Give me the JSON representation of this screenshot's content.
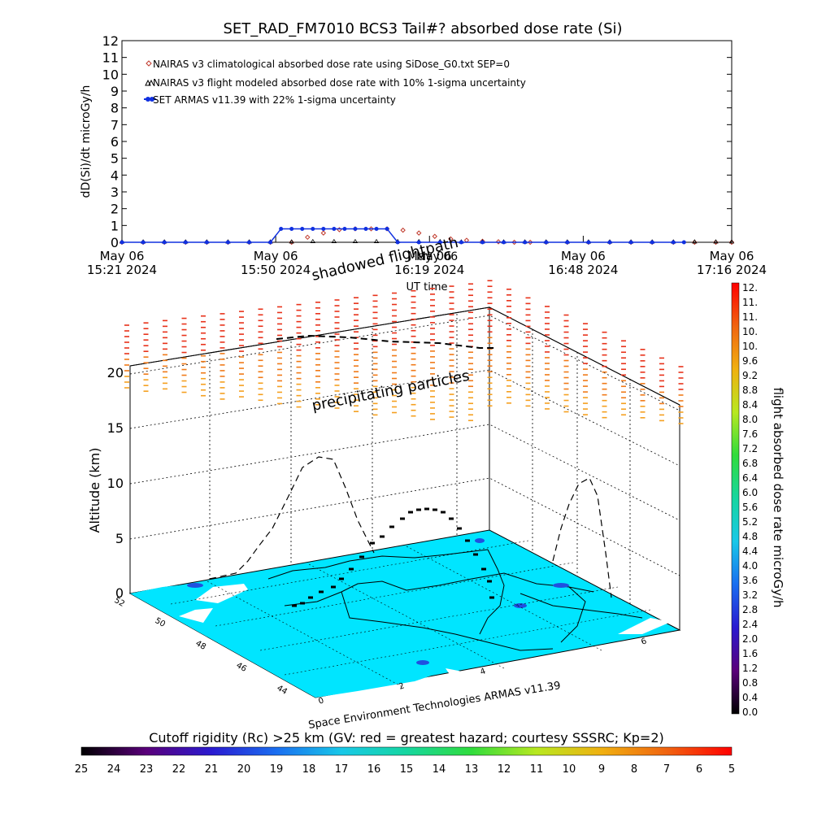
{
  "title": "SET_RAD_FM7010  BCS3 Tail#? absorbed dose rate (Si)",
  "top_chart": {
    "ylabel": "dD(Si)/dt microGy/h",
    "xlabel": "UT time",
    "y_ticks": [
      "0",
      "1",
      "2",
      "3",
      "4",
      "5",
      "6",
      "7",
      "8",
      "9",
      "10",
      "11",
      "12"
    ],
    "x_ticks": [
      {
        "day": "May 06",
        "time": "15:21 2024"
      },
      {
        "day": "May 06",
        "time": "15:50 2024"
      },
      {
        "day": "May 06",
        "time": "16:19 2024"
      },
      {
        "day": "May 06",
        "time": "16:48 2024"
      },
      {
        "day": "May 06",
        "time": "17:16 2024"
      }
    ],
    "legend": [
      "NAIRAS v3 climatological absorbed dose rate using SiDose_G0.txt SEP=0",
      "NAIRAS v3 flight modeled absorbed dose rate with 10% 1-sigma uncertainty",
      "SET ARMAS v11.39 with 22% 1-sigma uncertainty"
    ]
  },
  "chart_data": [
    {
      "type": "line",
      "title": "SET_RAD_FM7010  BCS3 Tail#? absorbed dose rate (Si)",
      "xlabel": "UT time",
      "ylabel": "dD(Si)/dt microGy/h",
      "ylim": [
        0,
        12
      ],
      "xlim": [
        "15:21",
        "17:16"
      ],
      "grid": false,
      "legend_position": "top-left",
      "series": [
        {
          "name": "NAIRAS v3 climatological absorbed dose rate using SiDose_G0.txt SEP=0",
          "color": "#c0392b",
          "marker": "diamond",
          "x_minutes": [
            0,
            4,
            8,
            12,
            16,
            20,
            24,
            28,
            32,
            35,
            38,
            41,
            44,
            47,
            50,
            53,
            56,
            59,
            62,
            65,
            68,
            71,
            74,
            77,
            80,
            84,
            88,
            92,
            96,
            100,
            104,
            108,
            112,
            115
          ],
          "values": [
            0,
            0,
            0,
            0,
            0,
            0,
            0,
            0,
            0,
            0.3,
            0.55,
            0.75,
            0.8,
            0.8,
            0.8,
            0.72,
            0.55,
            0.35,
            0.2,
            0.12,
            0.06,
            0.03,
            0,
            0,
            0,
            0,
            0,
            0,
            0,
            0,
            0,
            0,
            0,
            0
          ]
        },
        {
          "name": "NAIRAS v3 flight modeled absorbed dose rate with 10% 1-sigma uncertainty",
          "color": "#000000",
          "marker": "triangle",
          "x_minutes": [
            0,
            4,
            8,
            12,
            16,
            20,
            24,
            28,
            32,
            36,
            40,
            44,
            48,
            52,
            56,
            60,
            64,
            68,
            72,
            76,
            80,
            84,
            88,
            92,
            96,
            100,
            104,
            108,
            112,
            115
          ],
          "values": [
            0,
            0,
            0,
            0,
            0,
            0,
            0,
            0,
            0,
            0.02,
            0.02,
            0.02,
            0.02,
            0.02,
            0.02,
            0.02,
            0,
            0,
            0,
            0,
            0,
            0,
            0,
            0,
            0,
            0,
            0,
            0,
            0,
            0
          ]
        },
        {
          "name": "SET ARMAS v11.39 with 22% 1-sigma uncertainty",
          "color": "#1030e0",
          "marker": "circle",
          "x_minutes": [
            0,
            4,
            8,
            12,
            16,
            20,
            24,
            28,
            30,
            32,
            34,
            36,
            38,
            40,
            42,
            44,
            46,
            48,
            50,
            52,
            56,
            60,
            64,
            68,
            72,
            76,
            80,
            84,
            88,
            92,
            96,
            100,
            104,
            106
          ],
          "values": [
            0,
            0,
            0,
            0,
            0,
            0,
            0,
            0,
            0.8,
            0.8,
            0.8,
            0.8,
            0.8,
            0.8,
            0.8,
            0.8,
            0.8,
            0.8,
            0.8,
            0,
            0,
            0,
            0,
            0,
            0,
            0,
            0,
            0,
            0,
            0,
            0,
            0,
            0,
            0
          ]
        }
      ]
    }
  ],
  "scene": {
    "zlabel": "Altitude (km)",
    "z_ticks": [
      "0",
      "5",
      "10",
      "15",
      "20"
    ],
    "annotation_top": "shadowed flightpath",
    "annotation_overlap": "May 06",
    "annotation_mid": "precipitating particles",
    "credit": "Space Environment Technologies ARMAS v11.39",
    "lat_ticks": [
      "52",
      "50",
      "48",
      "46",
      "44"
    ],
    "lon_ticks": [
      "0",
      "2",
      "4",
      "6"
    ],
    "ocean_color": "#00e5ff",
    "land_color": "#ffffff"
  },
  "right_colorbar": {
    "label": "flight absorbed dose rate microGy/h",
    "ticks": [
      "12.",
      "11.",
      "11.",
      "10.",
      "10.",
      "9.6",
      "9.2",
      "8.8",
      "8.4",
      "8.0",
      "7.6",
      "7.2",
      "6.8",
      "6.4",
      "6.0",
      "5.6",
      "5.2",
      "4.8",
      "4.4",
      "4.0",
      "3.6",
      "3.2",
      "2.8",
      "2.4",
      "2.0",
      "1.6",
      "1.2",
      "0.8",
      "0.4",
      "0.0"
    ]
  },
  "bottom_colorbar": {
    "label": "Cutoff rigidity (Rc) >25 km (GV: red = greatest hazard; courtesy SSSRC; Kp=2)",
    "ticks": [
      "25",
      "24",
      "23",
      "22",
      "21",
      "20",
      "19",
      "18",
      "17",
      "16",
      "15",
      "14",
      "13",
      "12",
      "11",
      "10",
      "9",
      "8",
      "7",
      "6",
      "5"
    ]
  }
}
